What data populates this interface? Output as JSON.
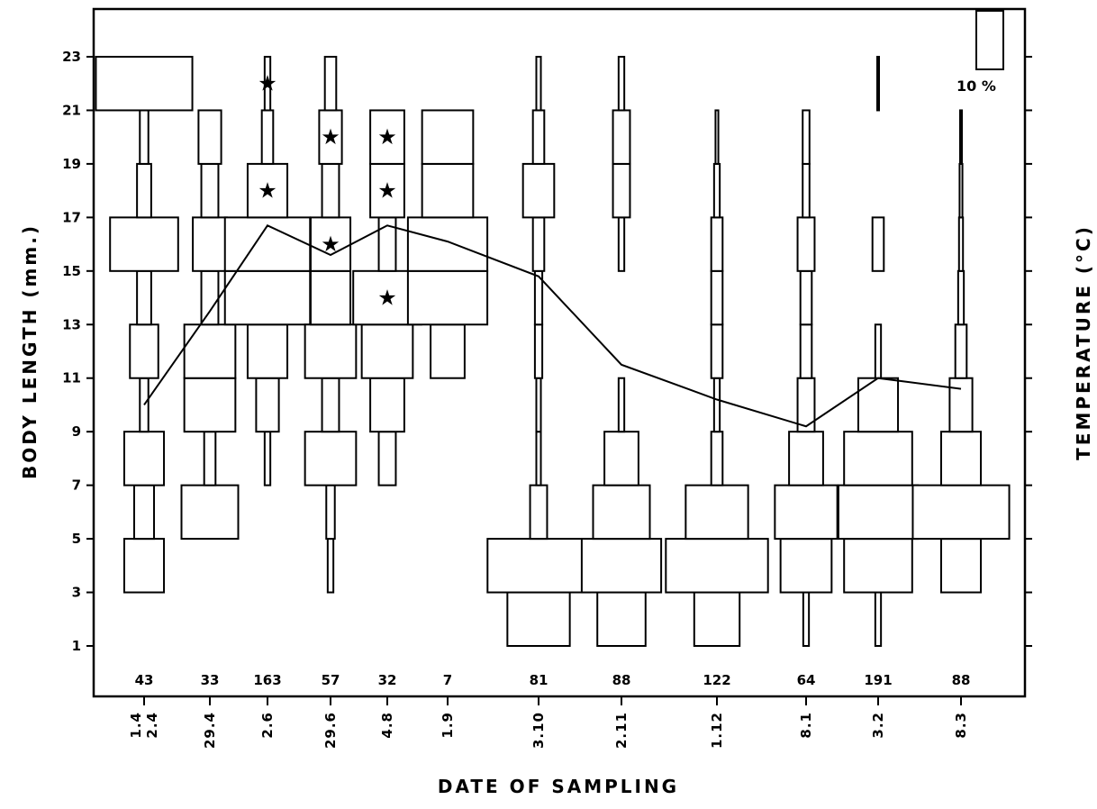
{
  "chart_data": {
    "type": "kite-diagram",
    "xlabel": "DATE OF SAMPLING",
    "ylabel": "BODY LENGTH (mm.)",
    "y2label": "TEMPERATURE (°C)",
    "ylim": [
      0,
      24
    ],
    "yticks": [
      1,
      3,
      5,
      7,
      9,
      11,
      13,
      15,
      17,
      19,
      21,
      23
    ],
    "scale_label": "10 %",
    "size_classes": [
      [
        1,
        3
      ],
      [
        3,
        5
      ],
      [
        5,
        7
      ],
      [
        7,
        9
      ],
      [
        9,
        11
      ],
      [
        11,
        13
      ],
      [
        13,
        15
      ],
      [
        15,
        17
      ],
      [
        17,
        19
      ],
      [
        19,
        21
      ],
      [
        21,
        23
      ]
    ],
    "samples": [
      {
        "date": "1.4\n2.4",
        "n": "43",
        "bars": [
          {
            "lo": 3,
            "hi": 5,
            "pct": 7
          },
          {
            "lo": 5,
            "hi": 7,
            "pct": 3.5
          },
          {
            "lo": 7,
            "hi": 9,
            "pct": 7
          },
          {
            "lo": 9,
            "hi": 11,
            "pct": 1.5
          },
          {
            "lo": 11,
            "hi": 13,
            "pct": 5
          },
          {
            "lo": 13,
            "hi": 15,
            "pct": 2.5
          },
          {
            "lo": 15,
            "hi": 17,
            "pct": 12
          },
          {
            "lo": 17,
            "hi": 19,
            "pct": 2.5
          },
          {
            "lo": 19,
            "hi": 21,
            "pct": 1.5
          },
          {
            "lo": 21,
            "hi": 23,
            "pct": 17
          }
        ],
        "stars": [],
        "temp": 10
      },
      {
        "date": "29.4",
        "n": "33",
        "bars": [
          {
            "lo": 5,
            "hi": 7,
            "pct": 10
          },
          {
            "lo": 7,
            "hi": 9,
            "pct": 2
          },
          {
            "lo": 9,
            "hi": 11,
            "pct": 9
          },
          {
            "lo": 11,
            "hi": 13,
            "pct": 9
          },
          {
            "lo": 13,
            "hi": 15,
            "pct": 3
          },
          {
            "lo": 15,
            "hi": 17,
            "pct": 6
          },
          {
            "lo": 17,
            "hi": 19,
            "pct": 3
          },
          {
            "lo": 19,
            "hi": 21,
            "pct": 4
          }
        ],
        "stars": [],
        "temp": 13.5
      },
      {
        "date": "2.6",
        "n": "163",
        "bars": [
          {
            "lo": 7,
            "hi": 9,
            "pct": 1
          },
          {
            "lo": 9,
            "hi": 11,
            "pct": 4
          },
          {
            "lo": 11,
            "hi": 13,
            "pct": 7
          },
          {
            "lo": 13,
            "hi": 15,
            "pct": 15
          },
          {
            "lo": 15,
            "hi": 17,
            "pct": 15
          },
          {
            "lo": 17,
            "hi": 19,
            "pct": 7
          },
          {
            "lo": 19,
            "hi": 21,
            "pct": 2
          },
          {
            "lo": 21,
            "hi": 23,
            "pct": 1
          }
        ],
        "stars": [
          18,
          22
        ],
        "temp": 16.7
      },
      {
        "date": "29.6",
        "n": "57",
        "bars": [
          {
            "lo": 3,
            "hi": 5,
            "pct": 1
          },
          {
            "lo": 5,
            "hi": 7,
            "pct": 1.5
          },
          {
            "lo": 7,
            "hi": 9,
            "pct": 9
          },
          {
            "lo": 9,
            "hi": 11,
            "pct": 3
          },
          {
            "lo": 11,
            "hi": 13,
            "pct": 9
          },
          {
            "lo": 13,
            "hi": 15,
            "pct": 7
          },
          {
            "lo": 15,
            "hi": 17,
            "pct": 7
          },
          {
            "lo": 17,
            "hi": 19,
            "pct": 3
          },
          {
            "lo": 19,
            "hi": 21,
            "pct": 4
          },
          {
            "lo": 21,
            "hi": 23,
            "pct": 2
          }
        ],
        "stars": [
          16,
          20
        ],
        "temp": 15.6
      },
      {
        "date": "4.8",
        "n": "32",
        "bars": [
          {
            "lo": 7,
            "hi": 9,
            "pct": 3
          },
          {
            "lo": 9,
            "hi": 11,
            "pct": 6
          },
          {
            "lo": 11,
            "hi": 13,
            "pct": 9
          },
          {
            "lo": 13,
            "hi": 15,
            "pct": 12
          },
          {
            "lo": 15,
            "hi": 17,
            "pct": 3
          },
          {
            "lo": 17,
            "hi": 19,
            "pct": 6
          },
          {
            "lo": 19,
            "hi": 21,
            "pct": 6
          }
        ],
        "stars": [
          14,
          18,
          20
        ],
        "temp": 16.7
      },
      {
        "date": "1.9",
        "n": "7",
        "bars": [
          {
            "lo": 11,
            "hi": 13,
            "pct": 6
          },
          {
            "lo": 13,
            "hi": 15,
            "pct": 14
          },
          {
            "lo": 15,
            "hi": 17,
            "pct": 14
          },
          {
            "lo": 17,
            "hi": 19,
            "pct": 9
          },
          {
            "lo": 19,
            "hi": 21,
            "pct": 9
          }
        ],
        "stars": [],
        "temp": 16.1
      },
      {
        "date": "3.10",
        "n": "81",
        "bars": [
          {
            "lo": 1,
            "hi": 3,
            "pct": 11
          },
          {
            "lo": 3,
            "hi": 5,
            "pct": 18
          },
          {
            "lo": 5,
            "hi": 7,
            "pct": 3
          },
          {
            "lo": 7,
            "hi": 9,
            "pct": 0.8
          },
          {
            "lo": 9,
            "hi": 11,
            "pct": 0.8
          },
          {
            "lo": 11,
            "hi": 13,
            "pct": 1.3
          },
          {
            "lo": 13,
            "hi": 15,
            "pct": 1.3
          },
          {
            "lo": 15,
            "hi": 17,
            "pct": 2
          },
          {
            "lo": 17,
            "hi": 19,
            "pct": 5.5
          },
          {
            "lo": 19,
            "hi": 21,
            "pct": 2
          },
          {
            "lo": 21,
            "hi": 23,
            "pct": 0.8
          }
        ],
        "stars": [],
        "temp": 14.8
      },
      {
        "date": "2.11",
        "n": "88",
        "bars": [
          {
            "lo": 1,
            "hi": 3,
            "pct": 8.5
          },
          {
            "lo": 3,
            "hi": 5,
            "pct": 14
          },
          {
            "lo": 5,
            "hi": 7,
            "pct": 10
          },
          {
            "lo": 7,
            "hi": 9,
            "pct": 6
          },
          {
            "lo": 9,
            "hi": 11,
            "pct": 1
          },
          {
            "lo": 15,
            "hi": 17,
            "pct": 1
          },
          {
            "lo": 17,
            "hi": 19,
            "pct": 3
          },
          {
            "lo": 19,
            "hi": 21,
            "pct": 3
          },
          {
            "lo": 21,
            "hi": 23,
            "pct": 1
          }
        ],
        "stars": [],
        "temp": 11.5
      },
      {
        "date": "1.12",
        "n": "122",
        "bars": [
          {
            "lo": 1,
            "hi": 3,
            "pct": 8
          },
          {
            "lo": 3,
            "hi": 5,
            "pct": 18
          },
          {
            "lo": 5,
            "hi": 7,
            "pct": 11
          },
          {
            "lo": 7,
            "hi": 9,
            "pct": 2
          },
          {
            "lo": 9,
            "hi": 11,
            "pct": 1
          },
          {
            "lo": 11,
            "hi": 13,
            "pct": 2
          },
          {
            "lo": 13,
            "hi": 15,
            "pct": 2
          },
          {
            "lo": 15,
            "hi": 17,
            "pct": 2
          },
          {
            "lo": 17,
            "hi": 19,
            "pct": 1
          },
          {
            "lo": 19,
            "hi": 21,
            "pct": 0.5
          }
        ],
        "stars": [],
        "temp": 10.2
      },
      {
        "date": "8.1",
        "n": "64",
        "bars": [
          {
            "lo": 1,
            "hi": 3,
            "pct": 1
          },
          {
            "lo": 3,
            "hi": 5,
            "pct": 9
          },
          {
            "lo": 5,
            "hi": 7,
            "pct": 11
          },
          {
            "lo": 7,
            "hi": 9,
            "pct": 6
          },
          {
            "lo": 9,
            "hi": 11,
            "pct": 3
          },
          {
            "lo": 11,
            "hi": 13,
            "pct": 2
          },
          {
            "lo": 13,
            "hi": 15,
            "pct": 2
          },
          {
            "lo": 15,
            "hi": 17,
            "pct": 3
          },
          {
            "lo": 17,
            "hi": 19,
            "pct": 1.2
          },
          {
            "lo": 19,
            "hi": 21,
            "pct": 1.2
          }
        ],
        "stars": [],
        "temp": 9.2
      },
      {
        "date": "3.2",
        "n": "191",
        "bars": [
          {
            "lo": 1,
            "hi": 3,
            "pct": 1
          },
          {
            "lo": 3,
            "hi": 5,
            "pct": 12
          },
          {
            "lo": 5,
            "hi": 7,
            "pct": 14
          },
          {
            "lo": 7,
            "hi": 9,
            "pct": 12
          },
          {
            "lo": 9,
            "hi": 11,
            "pct": 7
          },
          {
            "lo": 11,
            "hi": 13,
            "pct": 1
          },
          {
            "lo": 15,
            "hi": 17,
            "pct": 2
          },
          {
            "lo": 21,
            "hi": 23,
            "pct": 0.3
          }
        ],
        "stars": [],
        "temp": 11
      },
      {
        "date": "8.3",
        "n": "88",
        "bars": [
          {
            "lo": 3,
            "hi": 5,
            "pct": 7
          },
          {
            "lo": 5,
            "hi": 7,
            "pct": 17
          },
          {
            "lo": 7,
            "hi": 9,
            "pct": 7
          },
          {
            "lo": 9,
            "hi": 11,
            "pct": 4
          },
          {
            "lo": 11,
            "hi": 13,
            "pct": 2
          },
          {
            "lo": 13,
            "hi": 15,
            "pct": 1
          },
          {
            "lo": 15,
            "hi": 17,
            "pct": 0.7
          },
          {
            "lo": 17,
            "hi": 19,
            "pct": 0.5
          },
          {
            "lo": 19,
            "hi": 21,
            "pct": 0.3
          }
        ],
        "stars": [],
        "temp": 10.6
      }
    ]
  }
}
